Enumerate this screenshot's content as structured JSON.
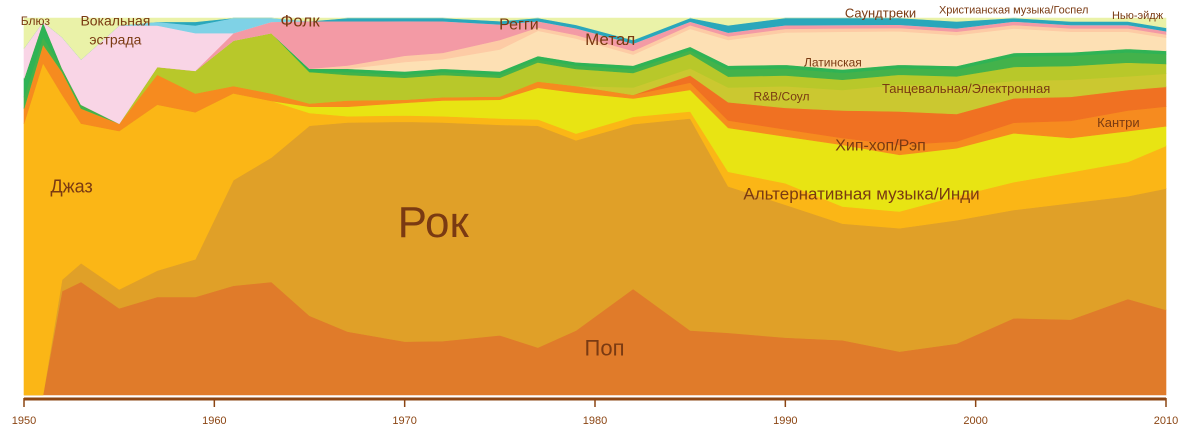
{
  "chart_data": {
    "type": "area",
    "stacked": true,
    "normalized": true,
    "x": [
      1950,
      1951,
      1952,
      1953,
      1955,
      1957,
      1959,
      1961,
      1963,
      1965,
      1967,
      1970,
      1972,
      1975,
      1977,
      1979,
      1982,
      1985,
      1987,
      1990,
      1993,
      1996,
      1999,
      2002,
      2005,
      2008,
      2010
    ],
    "xlim": [
      1950,
      2010
    ],
    "xticks": [
      "1950",
      "1960",
      "1970",
      "1980",
      "1990",
      "2000",
      "2010"
    ],
    "ylim": [
      0,
      1
    ],
    "series": [
      {
        "name": "Поп",
        "color": "#e07b2a",
        "values": [
          0.0,
          0.0,
          0.27,
          0.3,
          0.23,
          0.26,
          0.26,
          0.29,
          0.3,
          0.25,
          0.2,
          0.17,
          0.17,
          0.19,
          0.15,
          0.19,
          0.29,
          0.18,
          0.17,
          0.16,
          0.16,
          0.13,
          0.15,
          0.22,
          0.22,
          0.28,
          0.26
        ]
      },
      {
        "name": "Рок",
        "color": "#e0a028",
        "values": [
          0.0,
          0.0,
          0.03,
          0.05,
          0.05,
          0.07,
          0.1,
          0.28,
          0.33,
          0.6,
          0.66,
          0.7,
          0.69,
          0.67,
          0.7,
          0.56,
          0.45,
          0.59,
          0.4,
          0.37,
          0.34,
          0.37,
          0.36,
          0.31,
          0.34,
          0.3,
          0.37
        ]
      },
      {
        "name": "Джаз",
        "color": "#fbb616",
        "values": [
          0.72,
          0.88,
          0.48,
          0.37,
          0.42,
          0.44,
          0.39,
          0.23,
          0.15,
          0.04,
          0.02,
          0.02,
          0.02,
          0.02,
          0.02,
          0.02,
          0.02,
          0.02,
          0.04,
          0.06,
          0.05,
          0.05,
          0.07,
          0.08,
          0.09,
          0.1,
          0.13
        ]
      },
      {
        "name": "Альтернативная музыка/Инди",
        "color": "#e8e413",
        "values": [
          0.0,
          0.0,
          0.0,
          0.0,
          0.0,
          0.0,
          0.0,
          0.0,
          0.0,
          0.02,
          0.03,
          0.04,
          0.05,
          0.06,
          0.1,
          0.12,
          0.05,
          0.06,
          0.12,
          0.13,
          0.18,
          0.17,
          0.14,
          0.14,
          0.1,
          0.09,
          0.06
        ]
      },
      {
        "name": "Кантри",
        "color": "#f68b1f",
        "values": [
          0.04,
          0.05,
          0.06,
          0.04,
          0.02,
          0.08,
          0.05,
          0.02,
          0.02,
          0.01,
          0.02,
          0.01,
          0.01,
          0.01,
          0.02,
          0.02,
          0.01,
          0.02,
          0.02,
          0.02,
          0.02,
          0.03,
          0.02,
          0.03,
          0.05,
          0.06,
          0.06
        ]
      },
      {
        "name": "Хип-хоп/Рэп",
        "color": "#f07122",
        "values": [
          0.0,
          0.0,
          0.0,
          0.0,
          0.0,
          0.0,
          0.0,
          0.0,
          0.0,
          0.0,
          0.0,
          0.0,
          0.0,
          0.0,
          0.0,
          0.0,
          0.0,
          0.02,
          0.05,
          0.06,
          0.08,
          0.1,
          0.08,
          0.07,
          0.07,
          0.06,
          0.06
        ]
      },
      {
        "name": "Танцевальная/Электронная",
        "color": "#cbc830",
        "values": [
          0.0,
          0.0,
          0.0,
          0.0,
          0.0,
          0.0,
          0.0,
          0.0,
          0.0,
          0.0,
          0.0,
          0.0,
          0.0,
          0.0,
          0.0,
          0.0,
          0.02,
          0.02,
          0.04,
          0.06,
          0.06,
          0.08,
          0.08,
          0.05,
          0.05,
          0.04,
          0.04
        ]
      },
      {
        "name": "R&B/Соул",
        "color": "#b8c82a",
        "values": [
          0.0,
          0.0,
          0.0,
          0.0,
          0.0,
          0.02,
          0.06,
          0.12,
          0.16,
          0.1,
          0.08,
          0.07,
          0.07,
          0.06,
          0.06,
          0.05,
          0.04,
          0.04,
          0.03,
          0.03,
          0.03,
          0.03,
          0.03,
          0.04,
          0.04,
          0.04,
          0.03
        ]
      },
      {
        "name": "Латинская",
        "color": "#43b24b",
        "values": [
          0.03,
          0.02,
          0.01,
          0.01,
          0.0,
          0.0,
          0.0,
          0.0,
          0.0,
          0.0,
          0.01,
          0.01,
          0.01,
          0.01,
          0.01,
          0.01,
          0.01,
          0.01,
          0.02,
          0.02,
          0.02,
          0.02,
          0.02,
          0.03,
          0.03,
          0.03,
          0.03
        ]
      },
      {
        "name": "Блюз",
        "color": "#2fb355",
        "values": [
          0.05,
          0.04,
          0.0,
          0.0,
          0.0,
          0.0,
          0.0,
          0.0,
          0.0,
          0.01,
          0.01,
          0.01,
          0.01,
          0.01,
          0.01,
          0.01,
          0.01,
          0.01,
          0.01,
          0.01,
          0.01,
          0.01,
          0.01,
          0.01,
          0.01,
          0.01,
          0.01
        ]
      },
      {
        "name": "Метал",
        "color": "#fde0b4",
        "values": [
          0.0,
          0.0,
          0.0,
          0.0,
          0.0,
          0.0,
          0.0,
          0.0,
          0.0,
          0.0,
          0.0,
          0.03,
          0.03,
          0.07,
          0.08,
          0.07,
          0.03,
          0.05,
          0.07,
          0.09,
          0.11,
          0.1,
          0.09,
          0.07,
          0.06,
          0.05,
          0.04
        ]
      },
      {
        "name": "Регги",
        "color": "#fdcba5",
        "values": [
          0.0,
          0.0,
          0.0,
          0.0,
          0.0,
          0.0,
          0.0,
          0.0,
          0.0,
          0.0,
          0.01,
          0.02,
          0.02,
          0.03,
          0.01,
          0.01,
          0.01,
          0.01,
          0.01,
          0.01,
          0.01,
          0.01,
          0.01,
          0.01,
          0.01,
          0.01,
          0.01
        ]
      },
      {
        "name": "Фолк",
        "color": "#f39aa5",
        "values": [
          0.0,
          0.0,
          0.0,
          0.0,
          0.0,
          0.0,
          0.0,
          0.02,
          0.03,
          0.15,
          0.14,
          0.11,
          0.1,
          0.05,
          0.02,
          0.02,
          0.02,
          0.01,
          0.01,
          0.01,
          0.01,
          0.01,
          0.01,
          0.01,
          0.01,
          0.01,
          0.01
        ]
      },
      {
        "name": "Вокальная эстрада",
        "color": "#f9d5e6",
        "values": [
          0.08,
          0.0,
          0.08,
          0.12,
          0.26,
          0.11,
          0.1,
          0.0,
          0.0,
          0.0,
          0.0,
          0.0,
          0.0,
          0.0,
          0.0,
          0.0,
          0.0,
          0.0,
          0.0,
          0.0,
          0.0,
          0.0,
          0.0,
          0.0,
          0.0,
          0.0,
          0.0
        ]
      },
      {
        "name": "Саундтреки",
        "color": "#7fd2e6",
        "values": [
          0.0,
          0.0,
          0.0,
          0.0,
          0.0,
          0.01,
          0.02,
          0.04,
          0.01,
          0.0,
          0.0,
          0.0,
          0.0,
          0.0,
          0.0,
          0.0,
          0.0,
          0.0,
          0.0,
          0.0,
          0.0,
          0.0,
          0.0,
          0.0,
          0.0,
          0.0,
          0.0
        ]
      },
      {
        "name": "Христианская музыка/Госпел",
        "color": "#2aa7bb",
        "values": [
          0.0,
          0.0,
          0.0,
          0.0,
          0.0,
          0.0,
          0.01,
          0.0,
          0.0,
          0.0,
          0.01,
          0.01,
          0.01,
          0.01,
          0.01,
          0.01,
          0.01,
          0.01,
          0.02,
          0.02,
          0.02,
          0.02,
          0.02,
          0.01,
          0.01,
          0.01,
          0.01
        ]
      },
      {
        "name": "Нью-эйдж",
        "color": "#eaf2a8",
        "values": [
          0.08,
          0.01,
          0.05,
          0.11,
          0.02,
          0.01,
          0.01,
          0.0,
          0.0,
          0.01,
          0.0,
          0.0,
          0.0,
          0.01,
          0.0,
          0.02,
          0.06,
          0.0,
          0.02,
          0.0,
          0.0,
          0.0,
          0.01,
          0.0,
          0.01,
          0.01,
          0.03
        ]
      }
    ],
    "labels": [
      {
        "series": "Поп",
        "text": "Поп",
        "x": 1980.5,
        "y": 0.12,
        "size": 22
      },
      {
        "series": "Рок",
        "text": "Рок",
        "x": 1971.5,
        "y": 0.45,
        "size": 44
      },
      {
        "series": "Джаз",
        "text": "Джаз",
        "x": 1952.5,
        "y": 0.55,
        "size": 18
      },
      {
        "series": "Альтернативная музыка/Инди",
        "text": "Альтернативная музыка/Инди",
        "x": 1994,
        "y": 0.53,
        "size": 17
      },
      {
        "series": "Кантри",
        "text": "Кантри",
        "x": 2007.5,
        "y": 0.72,
        "size": 13
      },
      {
        "series": "Хип-хоп/Рэп",
        "text": "Хип-хоп/Рэп",
        "x": 1995,
        "y": 0.66,
        "size": 16
      },
      {
        "series": "Танцевальная/Электронная",
        "text": "Танцевальная/Электронная",
        "x": 1999.5,
        "y": 0.81,
        "size": 13
      },
      {
        "series": "R&B/Соул",
        "text": "R&B/Соул",
        "x": 1989.8,
        "y": 0.79,
        "size": 12
      },
      {
        "series": "Латинская",
        "text": "Латинская",
        "x": 1992.5,
        "y": 0.88,
        "size": 12
      },
      {
        "series": "Метал",
        "text": "Метал",
        "x": 1980.8,
        "y": 0.94,
        "size": 17
      },
      {
        "series": "Регги",
        "text": "Регги",
        "x": 1976,
        "y": 0.98,
        "size": 16
      },
      {
        "series": "Фолк",
        "text": "Фолк",
        "x": 1964.5,
        "y": 0.99,
        "size": 17
      },
      {
        "series": "Вокальная эстрада",
        "text": "Вокальная",
        "x": 1954.8,
        "y": 0.99,
        "size": 14
      },
      {
        "series": "Вокальная эстрада",
        "text": "эстрада",
        "x": 1954.8,
        "y": 0.94,
        "size": 14
      },
      {
        "series": "Блюз",
        "text": "Блюз",
        "x": 1950.6,
        "y": 0.99,
        "size": 12
      },
      {
        "series": "Саундтреки",
        "text": "Саундтреки",
        "x": 1995,
        "y": 1.01,
        "size": 13
      },
      {
        "series": "Христианская музыка/Госпел",
        "text": "Христианская музыка/Госпел",
        "x": 2002,
        "y": 1.02,
        "size": 11
      },
      {
        "series": "Нью-эйдж",
        "text": "Нью-эйдж",
        "x": 2008.5,
        "y": 1.005,
        "size": 11
      }
    ],
    "colors": {
      "axis": "#8b4513",
      "text": "#7a3a12"
    }
  }
}
